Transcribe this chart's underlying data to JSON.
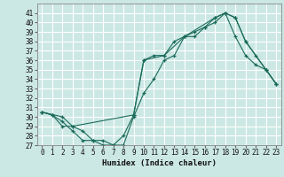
{
  "xlabel": "Humidex (Indice chaleur)",
  "bg_color": "#cce8e4",
  "grid_color": "#ffffff",
  "line_color": "#1a6b5a",
  "xlim": [
    -0.5,
    23.5
  ],
  "ylim": [
    27,
    42
  ],
  "yticks": [
    27,
    28,
    29,
    30,
    31,
    32,
    33,
    34,
    35,
    36,
    37,
    38,
    39,
    40,
    41
  ],
  "xticks": [
    0,
    1,
    2,
    3,
    4,
    5,
    6,
    7,
    8,
    9,
    10,
    11,
    12,
    13,
    14,
    15,
    16,
    17,
    18,
    19,
    20,
    21,
    22,
    23
  ],
  "line1_x": [
    0,
    1,
    2,
    3,
    4,
    5,
    6,
    7,
    8,
    9,
    10,
    11,
    12,
    13,
    14,
    15,
    16,
    17,
    18,
    19,
    20,
    21,
    22,
    23
  ],
  "line1_y": [
    30.5,
    30.2,
    29.0,
    29.0,
    28.5,
    27.5,
    27.5,
    27.0,
    28.0,
    30.2,
    36.0,
    36.5,
    36.5,
    38.0,
    38.5,
    39.0,
    39.5,
    40.5,
    41.0,
    38.5,
    36.5,
    35.5,
    35.0,
    33.5
  ],
  "line2_x": [
    0,
    1,
    2,
    3,
    4,
    5,
    6,
    7,
    8,
    9,
    10,
    11,
    12,
    13,
    14,
    15,
    16,
    17,
    18,
    19,
    20,
    21,
    22,
    23
  ],
  "line2_y": [
    30.5,
    30.2,
    29.5,
    28.5,
    27.5,
    27.5,
    27.0,
    27.0,
    27.0,
    30.0,
    32.5,
    34.0,
    36.0,
    36.5,
    38.5,
    38.5,
    39.5,
    40.0,
    41.0,
    40.5,
    38.0,
    36.5,
    35.0,
    33.5
  ],
  "line3_x": [
    0,
    2,
    3,
    9,
    10,
    12,
    14,
    17,
    18,
    19,
    20,
    22,
    23
  ],
  "line3_y": [
    30.5,
    30.0,
    29.0,
    30.2,
    36.0,
    36.5,
    38.5,
    40.5,
    41.0,
    40.5,
    38.0,
    35.0,
    33.5
  ],
  "xlabel_fontsize": 6.5,
  "tick_fontsize": 5.5
}
